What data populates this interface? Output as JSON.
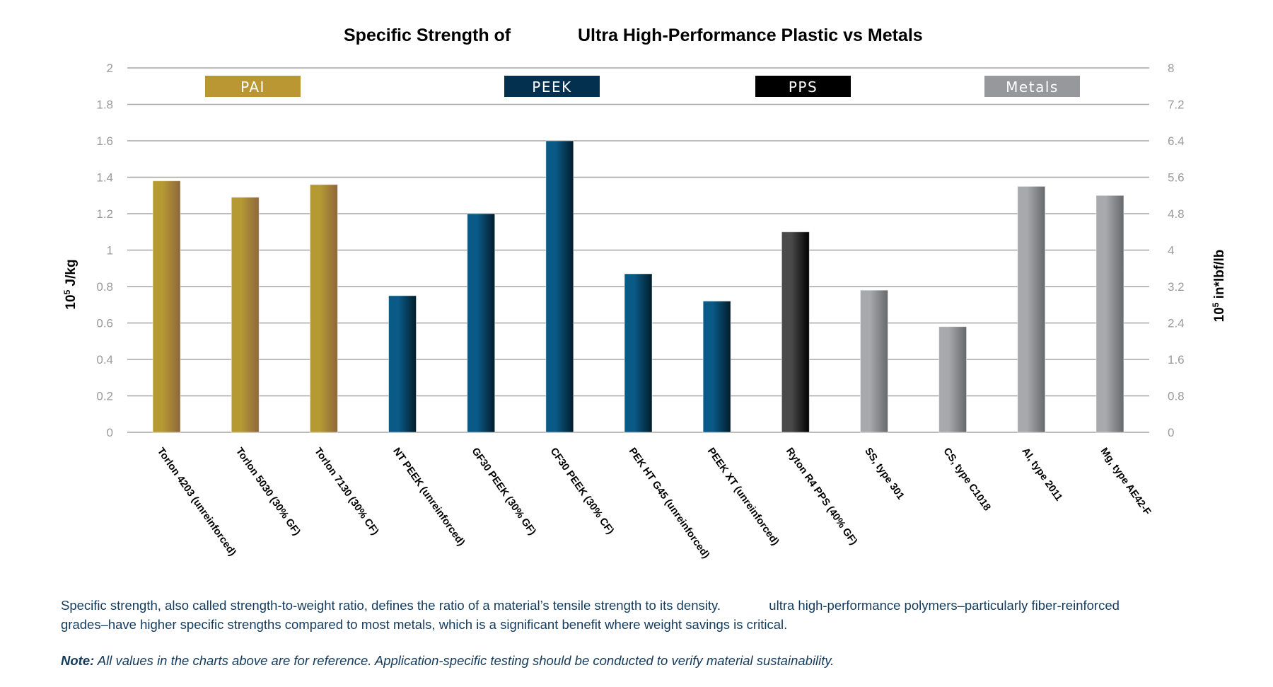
{
  "chart_data": {
    "type": "bar",
    "title": "Specific Strength of Ultra High-Performance Plastic vs Metals",
    "title_parts": [
      "Specific Strength of",
      "Ultra High-Performance Plastic vs Metals"
    ],
    "ylabel": "10⁵ J/kg",
    "ylabel_base": "10",
    "ylabel_exp": "5",
    "ylabel_unit": " J/kg",
    "y2label_base": "10",
    "y2label_exp": "5",
    "y2label_unit": " in*lbf/lb",
    "y2label": "10⁵ in*lbf/lb",
    "xlabel": "",
    "ylim": [
      0,
      2
    ],
    "y2lim": [
      0,
      8
    ],
    "yticks": [
      "0",
      "0.2",
      "0.4",
      "0.6",
      "0.8",
      "1",
      "1.2",
      "1.4",
      "1.6",
      "1.8",
      "2"
    ],
    "y2ticks": [
      "0",
      "0.8",
      "1.6",
      "2.4",
      "3.2",
      "4",
      "4.8",
      "5.6",
      "6.4",
      "7.2",
      "8"
    ],
    "grid": true,
    "categories": [
      "Torlon 4203 (unreinforced)",
      "Torlon 5030 (30% GF)",
      "Torlon 7130 (30% CF)",
      "NT PEEK (unreinforced)",
      "GF30 PEEK (30% GF)",
      "CF30 PEEK (30% CF)",
      "PEK HT G45 (unreinforced)",
      "PEEK XT (unreinforced)",
      "Ryton R4 PPS (40% GF)",
      "SS, type 301",
      "CS, type C1018",
      "Al, type 2011",
      "Mg, type AE42-F"
    ],
    "values": [
      1.38,
      1.29,
      1.36,
      0.75,
      1.2,
      1.6,
      0.87,
      0.72,
      1.1,
      0.78,
      0.58,
      1.35,
      1.3
    ],
    "groups": [
      "PAI",
      "PAI",
      "PAI",
      "PEEK",
      "PEEK",
      "PEEK",
      "PEEK",
      "PEEK",
      "PPS",
      "Metals",
      "Metals",
      "Metals",
      "Metals"
    ],
    "legend": [
      {
        "name": "PAI",
        "color": "#bb9733"
      },
      {
        "name": "PEEK",
        "color": "#03304f"
      },
      {
        "name": "PPS",
        "color": "#000000"
      },
      {
        "name": "Metals",
        "color": "#97989b"
      }
    ],
    "legend_position": "top",
    "group_gradients": {
      "PAI": [
        "#b59a33",
        "#8e663c"
      ],
      "PEEK": [
        "#0a5a88",
        "#021d2a"
      ],
      "PPS": [
        "#4a4a4a",
        "#000000"
      ],
      "Metals": [
        "#a8a9ac",
        "#67686b"
      ]
    }
  },
  "footer": {
    "description_part1": "Specific strength, also called strength-to-weight ratio, defines the ratio of a material’s tensile strength to its density.",
    "description_part2": "ultra high-performance polymers–particularly fiber-reinforced grades–have higher specific strengths compared to most metals, which is a significant benefit where weight savings is critical.",
    "note_label": "Note:",
    "note_text": "All values in the charts above are for reference. Application-specific testing should be conducted to verify material sustainability."
  }
}
